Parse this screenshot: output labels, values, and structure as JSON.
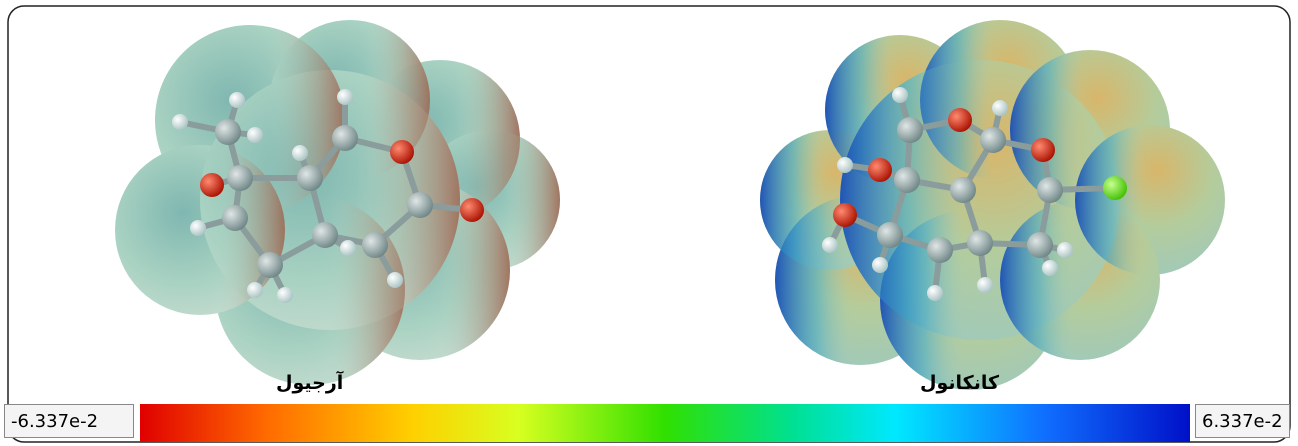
{
  "molecules": [
    {
      "label": "آرجیول"
    },
    {
      "label": "کانکانول"
    }
  ],
  "colorbar": {
    "min_label": "-6.337e-2",
    "max_label": "6.337e-2"
  }
}
